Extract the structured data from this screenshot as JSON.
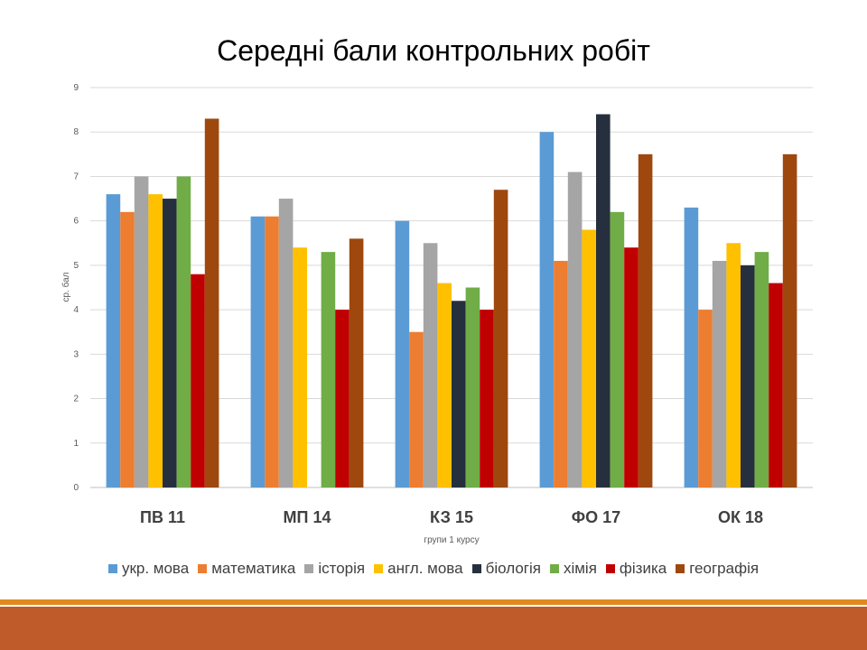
{
  "chart_data": {
    "type": "bar",
    "title": "Середні бали контрольних робіт",
    "xlabel": "групи 1 курсу",
    "ylabel": "ср. бал",
    "ylim": [
      0,
      9
    ],
    "yticks": [
      "0",
      "1",
      "2",
      "3",
      "4",
      "5",
      "6",
      "7",
      "8",
      "9"
    ],
    "grid": true,
    "legend_position": "bottom",
    "categories": [
      "ПВ 11",
      "МП 14",
      "КЗ 15",
      "ФО 17",
      "ОК 18"
    ],
    "series": [
      {
        "name": "укр. мова",
        "color": "#5b9bd5",
        "values": [
          6.6,
          6.1,
          6.0,
          8.0,
          6.3
        ]
      },
      {
        "name": "математика",
        "color": "#ed7d31",
        "values": [
          6.2,
          6.1,
          3.5,
          5.1,
          4.0
        ]
      },
      {
        "name": "історія",
        "color": "#a5a5a5",
        "values": [
          7.0,
          6.5,
          5.5,
          7.1,
          5.1
        ]
      },
      {
        "name": "англ. мова",
        "color": "#ffc000",
        "values": [
          6.6,
          5.4,
          4.6,
          5.8,
          5.5
        ]
      },
      {
        "name": "біологія",
        "color": "#262f3d",
        "values": [
          6.5,
          0,
          4.2,
          8.4,
          5.0
        ]
      },
      {
        "name": "хімія",
        "color": "#70ad47",
        "values": [
          7.0,
          5.3,
          4.5,
          6.2,
          5.3
        ]
      },
      {
        "name": "фізика",
        "color": "#c00000",
        "values": [
          4.8,
          4.0,
          4.0,
          5.4,
          4.6
        ]
      },
      {
        "name": "географія",
        "color": "#9e480e",
        "values": [
          8.3,
          5.6,
          6.7,
          7.5,
          7.5
        ]
      }
    ]
  },
  "theme": {
    "footer_line_color": "#e08a1e",
    "footer_bar_color": "#bf5a2b"
  }
}
